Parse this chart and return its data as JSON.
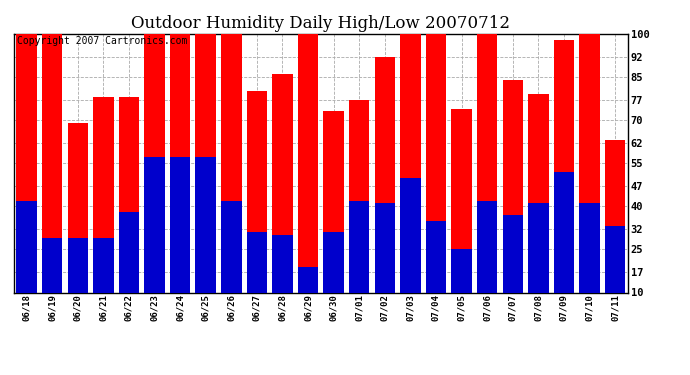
{
  "title": "Outdoor Humidity Daily High/Low 20070712",
  "copyright": "Copyright 2007 Cartronics.com",
  "dates": [
    "06/18",
    "06/19",
    "06/20",
    "06/21",
    "06/22",
    "06/23",
    "06/24",
    "06/25",
    "06/26",
    "06/27",
    "06/28",
    "06/29",
    "06/30",
    "07/01",
    "07/02",
    "07/03",
    "07/04",
    "07/05",
    "07/06",
    "07/07",
    "07/08",
    "07/09",
    "07/10",
    "07/11"
  ],
  "highs": [
    100,
    100,
    69,
    78,
    78,
    100,
    100,
    100,
    100,
    80,
    86,
    100,
    73,
    77,
    92,
    100,
    100,
    74,
    100,
    84,
    79,
    98,
    100,
    63
  ],
  "lows": [
    42,
    29,
    29,
    29,
    38,
    57,
    57,
    57,
    42,
    31,
    30,
    19,
    31,
    42,
    41,
    50,
    35,
    25,
    42,
    37,
    41,
    52,
    41,
    33
  ],
  "high_color": "#ff0000",
  "low_color": "#0000cc",
  "bg_color": "#ffffff",
  "grid_color": "#aaaaaa",
  "yticks": [
    10,
    17,
    25,
    32,
    40,
    47,
    55,
    62,
    70,
    77,
    85,
    92,
    100
  ],
  "ymin": 10,
  "ymax": 100,
  "bar_width": 0.8,
  "title_fontsize": 12,
  "copyright_fontsize": 7
}
